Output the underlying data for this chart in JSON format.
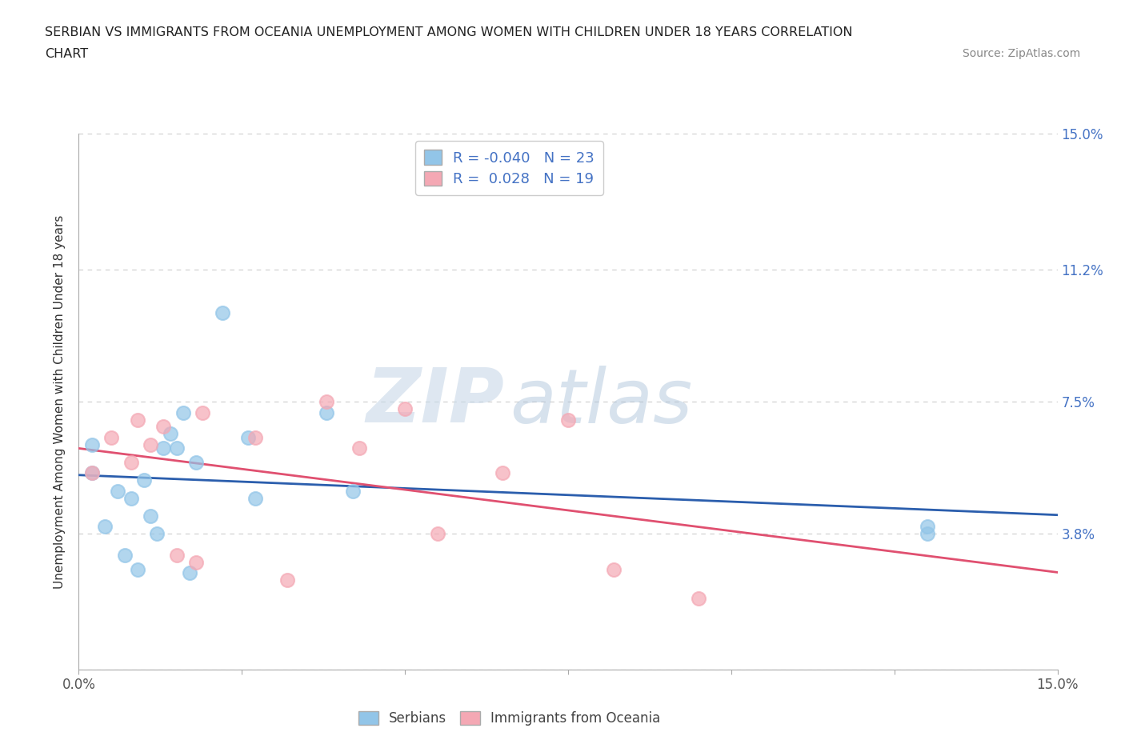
{
  "title_line1": "SERBIAN VS IMMIGRANTS FROM OCEANIA UNEMPLOYMENT AMONG WOMEN WITH CHILDREN UNDER 18 YEARS CORRELATION",
  "title_line2": "CHART",
  "source": "Source: ZipAtlas.com",
  "ylabel": "Unemployment Among Women with Children Under 18 years",
  "xlim": [
    0.0,
    0.15
  ],
  "ylim": [
    0.0,
    0.15
  ],
  "ytick_positions": [
    0.0,
    0.038,
    0.075,
    0.112,
    0.15
  ],
  "ytick_labels": [
    "",
    "3.8%",
    "7.5%",
    "11.2%",
    "15.0%"
  ],
  "xtick_positions": [
    0.0,
    0.025,
    0.05,
    0.075,
    0.1,
    0.125,
    0.15
  ],
  "r_serbian": -0.04,
  "n_serbian": 23,
  "r_oceania": 0.028,
  "n_oceania": 19,
  "color_serbian": "#92C5E8",
  "color_oceania": "#F4A8B4",
  "line_color_serbian": "#2B5EAD",
  "line_color_oceania": "#E05070",
  "scatter_serbian_x": [
    0.002,
    0.002,
    0.004,
    0.006,
    0.007,
    0.008,
    0.009,
    0.01,
    0.011,
    0.012,
    0.013,
    0.014,
    0.015,
    0.016,
    0.017,
    0.018,
    0.022,
    0.026,
    0.027,
    0.038,
    0.042,
    0.13,
    0.13
  ],
  "scatter_serbian_y": [
    0.055,
    0.063,
    0.04,
    0.05,
    0.032,
    0.048,
    0.028,
    0.053,
    0.043,
    0.038,
    0.062,
    0.066,
    0.062,
    0.072,
    0.027,
    0.058,
    0.1,
    0.065,
    0.048,
    0.072,
    0.05,
    0.04,
    0.038
  ],
  "scatter_oceania_x": [
    0.002,
    0.005,
    0.008,
    0.009,
    0.011,
    0.013,
    0.015,
    0.018,
    0.019,
    0.027,
    0.032,
    0.038,
    0.043,
    0.05,
    0.055,
    0.065,
    0.075,
    0.082,
    0.095
  ],
  "scatter_oceania_y": [
    0.055,
    0.065,
    0.058,
    0.07,
    0.063,
    0.068,
    0.032,
    0.03,
    0.072,
    0.065,
    0.025,
    0.075,
    0.062,
    0.073,
    0.038,
    0.055,
    0.07,
    0.028,
    0.02
  ],
  "watermark_zip": "ZIP",
  "watermark_atlas": "atlas",
  "background_color": "#FFFFFF",
  "grid_color": "#CCCCCC",
  "tick_color": "#4472C4",
  "spine_color": "#AAAAAA"
}
